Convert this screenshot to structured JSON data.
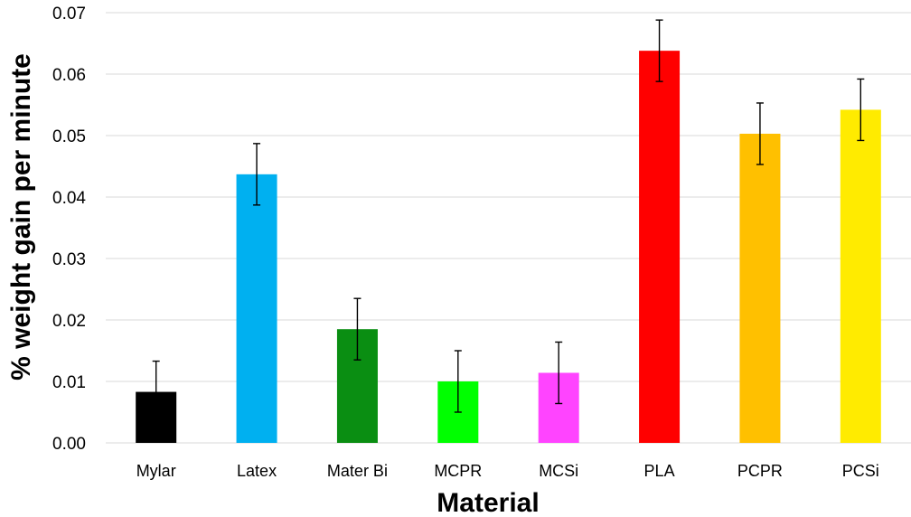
{
  "chart_data": {
    "type": "bar",
    "title": "",
    "xlabel": "Material",
    "ylabel": "% weight gain per minute",
    "ylim": [
      0,
      0.07
    ],
    "ytick_values": [
      0,
      0.01,
      0.02,
      0.03,
      0.04,
      0.05,
      0.06,
      0.07
    ],
    "ytick_labels": [
      "0.00",
      "0.01",
      "0.02",
      "0.03",
      "0.04",
      "0.05",
      "0.06",
      "0.07"
    ],
    "grid": "horizontal",
    "legend": "none",
    "categories": [
      "Mylar",
      "Latex",
      "Mater Bi",
      "MCPR",
      "MCSi",
      "PLA",
      "PCPR",
      "PCSi"
    ],
    "values": [
      0.0083,
      0.0437,
      0.0185,
      0.01,
      0.0114,
      0.0638,
      0.0503,
      0.0542
    ],
    "error": [
      0.005,
      0.005,
      0.005,
      0.005,
      0.005,
      0.005,
      0.005,
      0.005
    ],
    "colors": [
      "#000000",
      "#00b0f0",
      "#0a8e12",
      "#00ff00",
      "#ff44ff",
      "#ff0000",
      "#ffc000",
      "#ffeb00"
    ]
  }
}
